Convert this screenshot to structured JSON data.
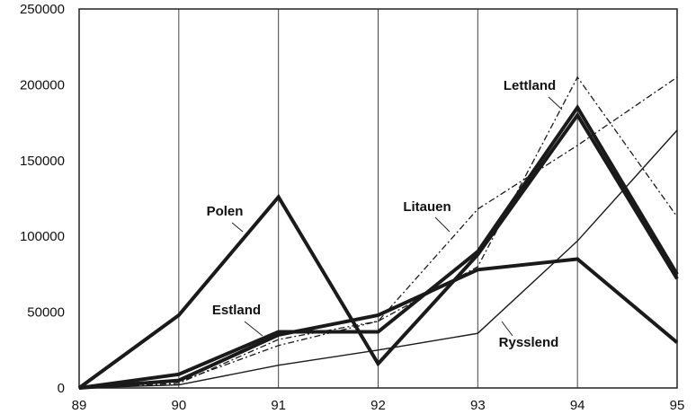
{
  "chart_data": {
    "type": "line",
    "x": [
      "89",
      "90",
      "91",
      "92",
      "93",
      "94",
      "95"
    ],
    "ylim": [
      0,
      250000
    ],
    "yticks": [
      "0",
      "50000",
      "100000",
      "150000",
      "200000",
      "250000"
    ],
    "grid": "vertical",
    "title": "",
    "xlabel": "",
    "ylabel": "",
    "series": [
      {
        "name": "Polen",
        "values": [
          0,
          48000,
          126000,
          16000,
          88000,
          180000,
          72000
        ],
        "style": "thick"
      },
      {
        "name": "Estland",
        "values": [
          0,
          9000,
          37000,
          37000,
          90000,
          185000,
          75000
        ],
        "style": "thick"
      },
      {
        "name": "Rysslend",
        "values": [
          0,
          5000,
          35000,
          48000,
          78000,
          85000,
          30000
        ],
        "style": "thick"
      },
      {
        "name": "Lettland",
        "values": [
          0,
          3000,
          32000,
          44000,
          80000,
          205000,
          113000
        ],
        "style": "dashdot"
      },
      {
        "name": "Litauen",
        "values": [
          0,
          4000,
          28000,
          44000,
          118000,
          160000,
          205000
        ],
        "style": "dashdot"
      },
      {
        "name": "",
        "values": [
          0,
          2000,
          15000,
          25000,
          36000,
          97000,
          170000
        ],
        "style": "thin"
      }
    ]
  }
}
